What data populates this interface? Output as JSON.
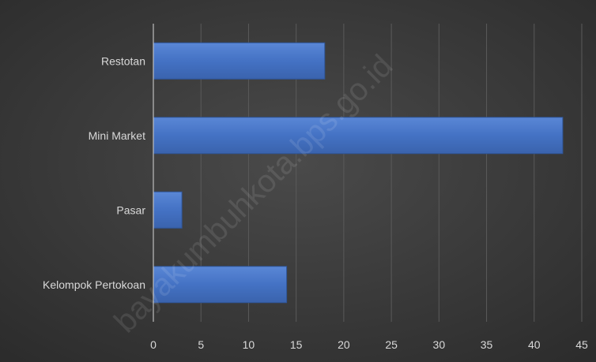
{
  "chart_data": {
    "type": "bar",
    "orientation": "horizontal",
    "categories": [
      "Restotan",
      "Mini Market",
      "Pasar",
      "Kelompok Pertokoan"
    ],
    "values": [
      18,
      43,
      3,
      14
    ],
    "xlim": [
      0,
      45
    ],
    "xticks": [
      0,
      5,
      10,
      15,
      20,
      25,
      30,
      35,
      40,
      45
    ],
    "grid": true,
    "legend": "none"
  },
  "watermark": "bayakumbuhkota.bps.go.id",
  "colors": {
    "bar": "#4472C4",
    "bar_edge": "#2F5597",
    "background": "#3a3a3a",
    "grid": "#5a5a5a",
    "axis": "#bdbdbd",
    "label": "#d9d9d9"
  }
}
